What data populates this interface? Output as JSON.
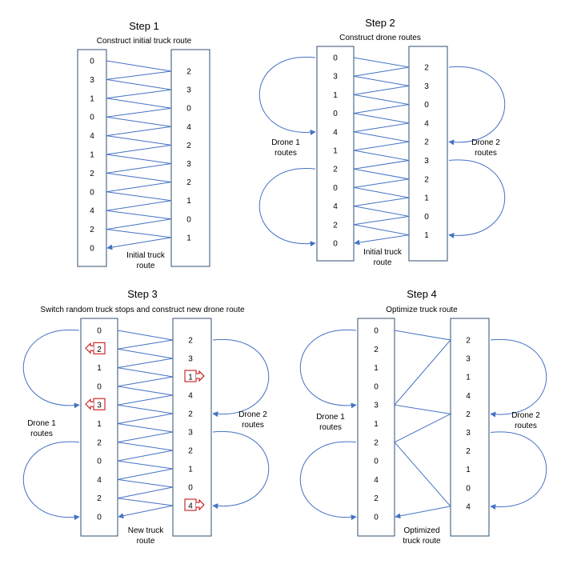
{
  "colors": {
    "line": "#4472c4",
    "box": "#2f4f6f",
    "highlight": "#c00000"
  },
  "panels": [
    {
      "title": "Step 1",
      "subtitle": "Construct initial truck route",
      "left_nodes": [
        "0",
        "3",
        "1",
        "0",
        "4",
        "1",
        "2",
        "0",
        "4",
        "2",
        "0"
      ],
      "right_nodes": [
        "2",
        "3",
        "0",
        "4",
        "2",
        "3",
        "2",
        "1",
        "0",
        "1"
      ],
      "truck_caption": [
        "Initial truck",
        "route"
      ],
      "drone1_caption": [],
      "drone2_caption": [],
      "truck_route": "zigzag",
      "highlights": []
    },
    {
      "title": "Step 2",
      "subtitle": "Construct drone routes",
      "left_nodes": [
        "0",
        "3",
        "1",
        "0",
        "4",
        "1",
        "2",
        "0",
        "4",
        "2",
        "0"
      ],
      "right_nodes": [
        "2",
        "3",
        "0",
        "4",
        "2",
        "3",
        "2",
        "1",
        "0",
        "1"
      ],
      "truck_caption": [
        "Initial truck",
        "route"
      ],
      "drone1_caption": [
        "Drone 1",
        "routes"
      ],
      "drone2_caption": [
        "Drone 2",
        "routes"
      ],
      "truck_route": "zigzag",
      "highlights": []
    },
    {
      "title": "Step 3",
      "subtitle": "Switch random truck stops and construct new drone route",
      "left_nodes": [
        "0",
        "2",
        "1",
        "0",
        "3",
        "1",
        "2",
        "0",
        "4",
        "2",
        "0"
      ],
      "right_nodes": [
        "2",
        "3",
        "1",
        "4",
        "2",
        "3",
        "2",
        "1",
        "0",
        "4"
      ],
      "truck_caption": [
        "New truck",
        "route"
      ],
      "drone1_caption": [
        "Drone 1",
        "routes"
      ],
      "drone2_caption": [
        "Drone 2",
        "routes"
      ],
      "truck_route": "zigzag",
      "highlights": [
        {
          "side": "left",
          "index": 1
        },
        {
          "side": "left",
          "index": 4
        },
        {
          "side": "right",
          "index": 2
        },
        {
          "side": "right",
          "index": 9
        }
      ]
    },
    {
      "title": "Step 4",
      "subtitle": "Optimize truck route",
      "left_nodes": [
        "0",
        "2",
        "1",
        "0",
        "3",
        "1",
        "2",
        "0",
        "4",
        "2",
        "0"
      ],
      "right_nodes": [
        "2",
        "3",
        "1",
        "4",
        "2",
        "3",
        "2",
        "1",
        "0",
        "4"
      ],
      "truck_caption": [
        "Optimized",
        "truck route"
      ],
      "drone1_caption": [
        "Drone 1",
        "routes"
      ],
      "drone2_caption": [
        "Drone 2",
        "routes"
      ],
      "truck_route": "optimized",
      "highlights": []
    }
  ]
}
